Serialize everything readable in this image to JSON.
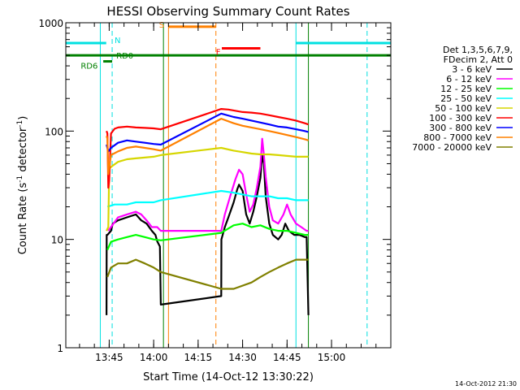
{
  "chart_data": {
    "type": "line",
    "title": "HESSI Observing Summary Count Rates",
    "xlabel": "Start Time (14-Oct-12 13:30:22)",
    "ylabel_main": "Count Rate (s",
    "ylabel_sup1": "-1",
    "ylabel_mid": " detector",
    "ylabel_sup2": "-1",
    "ylabel_end": ")",
    "yscale": "log",
    "ylim": [
      1,
      1000
    ],
    "xlim": [
      13.5061,
      15.3333
    ],
    "x_unit": "hours UT",
    "x_ticks": [
      {
        "v": 13.75,
        "label": "13:45"
      },
      {
        "v": 14.0,
        "label": "14:00"
      },
      {
        "v": 14.25,
        "label": "14:15"
      },
      {
        "v": 14.5,
        "label": "14:30"
      },
      {
        "v": 14.75,
        "label": "14:45"
      },
      {
        "v": 15.0,
        "label": "15:00"
      }
    ],
    "y_ticks": [
      {
        "v": 1,
        "label": "1"
      },
      {
        "v": 10,
        "label": "10"
      },
      {
        "v": 100,
        "label": "100"
      },
      {
        "v": 1000,
        "label": "1000"
      }
    ],
    "timestamp": "14-Oct-2012 21:30",
    "legend": {
      "header1": "Det 1,3,5,6,7,9,",
      "header2": "FDecim 2, Att 0",
      "entries": [
        {
          "label": "3 - 6 keV",
          "color": "#000000"
        },
        {
          "label": "6 - 12 keV",
          "color": "#ff00ff"
        },
        {
          "label": "12 - 25 keV",
          "color": "#00ff00"
        },
        {
          "label": "25 - 50 keV",
          "color": "#00ffff"
        },
        {
          "label": "50 - 100 keV",
          "color": "#d6d600"
        },
        {
          "label": "100 - 300 keV",
          "color": "#ff0000"
        },
        {
          "label": "300 - 800 keV",
          "color": "#0000ff"
        },
        {
          "label": "800 - 7000 keV",
          "color": "#ff8000"
        },
        {
          "label": "7000 - 20000 keV",
          "color": "#808000"
        }
      ]
    },
    "flags": [
      {
        "label": "N",
        "color": "#00e0e0",
        "y": 650,
        "segments": [
          [
            13.5061,
            13.7333
          ],
          [
            14.8,
            15.3333
          ]
        ]
      },
      {
        "label": "S",
        "color": "#ff8000",
        "y": 920,
        "segments": [
          [
            14.0833,
            14.35
          ]
        ]
      },
      {
        "label": "F",
        "color": "#ff0000",
        "y": 580,
        "segments": [
          [
            14.3833,
            14.6
          ]
        ]
      },
      {
        "label": "RD0",
        "color": "#008000",
        "y": 500,
        "segments": [
          [
            13.5061,
            15.3333
          ]
        ]
      },
      {
        "label": "RD6",
        "color": "#008000",
        "y": 440,
        "segments": [
          [
            13.7167,
            13.7667
          ]
        ]
      }
    ],
    "vlines": [
      {
        "x": 13.5,
        "color": "#00e0e0",
        "dash": false
      },
      {
        "x": 13.7,
        "color": "#00e0e0",
        "dash": false
      },
      {
        "x": 13.7667,
        "color": "#00e0e0",
        "dash": true
      },
      {
        "x": 14.055,
        "color": "#008000",
        "dash": false
      },
      {
        "x": 14.0833,
        "color": "#ff8000",
        "dash": false
      },
      {
        "x": 14.35,
        "color": "#ff8000",
        "dash": true
      },
      {
        "x": 14.8,
        "color": "#00e0e0",
        "dash": false
      },
      {
        "x": 14.87,
        "color": "#008000",
        "dash": false
      },
      {
        "x": 15.2,
        "color": "#00e0e0",
        "dash": true
      }
    ],
    "series": [
      {
        "name": "3 - 6 keV",
        "color": "#000000",
        "points": [
          [
            13.735,
            2.0
          ],
          [
            13.736,
            11
          ],
          [
            13.74,
            11
          ],
          [
            13.76,
            12
          ],
          [
            13.77,
            14
          ],
          [
            13.8,
            15
          ],
          [
            13.85,
            16
          ],
          [
            13.9,
            17
          ],
          [
            13.93,
            15
          ],
          [
            13.96,
            14
          ],
          [
            13.99,
            12
          ],
          [
            14.01,
            11
          ],
          [
            14.02,
            9.6
          ],
          [
            14.035,
            8.6
          ],
          [
            14.04,
            2.5
          ],
          [
            14.38,
            3.0
          ],
          [
            14.381,
            10
          ],
          [
            14.4,
            13
          ],
          [
            14.42,
            16
          ],
          [
            14.45,
            22
          ],
          [
            14.47,
            29
          ],
          [
            14.48,
            32
          ],
          [
            14.5,
            28
          ],
          [
            14.52,
            17
          ],
          [
            14.54,
            14
          ],
          [
            14.56,
            18
          ],
          [
            14.58,
            25
          ],
          [
            14.6,
            37
          ],
          [
            14.61,
            60
          ],
          [
            14.62,
            50
          ],
          [
            14.63,
            25
          ],
          [
            14.65,
            14
          ],
          [
            14.67,
            11
          ],
          [
            14.7,
            10
          ],
          [
            14.72,
            11
          ],
          [
            14.74,
            14
          ],
          [
            14.76,
            12
          ],
          [
            14.79,
            11
          ],
          [
            14.82,
            11
          ],
          [
            14.85,
            10.5
          ],
          [
            14.86,
            10.5
          ],
          [
            14.87,
            2.0
          ]
        ]
      },
      {
        "name": "6 - 12 keV",
        "color": "#ff00ff",
        "points": [
          [
            13.745,
            12
          ],
          [
            13.76,
            13
          ],
          [
            13.8,
            16
          ],
          [
            13.85,
            17
          ],
          [
            13.9,
            18
          ],
          [
            13.93,
            17
          ],
          [
            13.96,
            15
          ],
          [
            13.99,
            13
          ],
          [
            14.02,
            13
          ],
          [
            14.04,
            12
          ],
          [
            14.38,
            12
          ],
          [
            14.4,
            17
          ],
          [
            14.43,
            25
          ],
          [
            14.46,
            36
          ],
          [
            14.48,
            44
          ],
          [
            14.5,
            40
          ],
          [
            14.52,
            26
          ],
          [
            14.54,
            18
          ],
          [
            14.56,
            21
          ],
          [
            14.58,
            30
          ],
          [
            14.6,
            47
          ],
          [
            14.61,
            85
          ],
          [
            14.62,
            60
          ],
          [
            14.63,
            38
          ],
          [
            14.65,
            20
          ],
          [
            14.67,
            15
          ],
          [
            14.7,
            14
          ],
          [
            14.73,
            17
          ],
          [
            14.75,
            21
          ],
          [
            14.77,
            17
          ],
          [
            14.8,
            14
          ],
          [
            14.83,
            13
          ],
          [
            14.86,
            12
          ],
          [
            14.87,
            12
          ]
        ]
      },
      {
        "name": "12 - 25 keV",
        "color": "#00ff00",
        "points": [
          [
            13.74,
            8.0
          ],
          [
            13.76,
            9.5
          ],
          [
            13.8,
            10.0
          ],
          [
            13.85,
            10.5
          ],
          [
            13.9,
            11.0
          ],
          [
            13.95,
            10.5
          ],
          [
            14.0,
            10.0
          ],
          [
            14.04,
            9.8
          ],
          [
            14.38,
            11.5
          ],
          [
            14.45,
            13.5
          ],
          [
            14.5,
            14.0
          ],
          [
            14.55,
            13.0
          ],
          [
            14.6,
            13.5
          ],
          [
            14.65,
            12.5
          ],
          [
            14.7,
            12.0
          ],
          [
            14.75,
            12.0
          ],
          [
            14.8,
            11.5
          ],
          [
            14.85,
            11.0
          ],
          [
            14.87,
            11.0
          ]
        ]
      },
      {
        "name": "25 - 50 keV",
        "color": "#00ffff",
        "points": [
          [
            13.74,
            20
          ],
          [
            13.78,
            21
          ],
          [
            13.85,
            21
          ],
          [
            13.9,
            22
          ],
          [
            13.95,
            22
          ],
          [
            14.0,
            22
          ],
          [
            14.04,
            23
          ],
          [
            14.38,
            28
          ],
          [
            14.45,
            27
          ],
          [
            14.5,
            26
          ],
          [
            14.55,
            25
          ],
          [
            14.6,
            25
          ],
          [
            14.65,
            25
          ],
          [
            14.7,
            24
          ],
          [
            14.75,
            24
          ],
          [
            14.8,
            23
          ],
          [
            14.85,
            23
          ],
          [
            14.87,
            23
          ]
        ]
      },
      {
        "name": "50 - 100 keV",
        "color": "#d6d600",
        "points": [
          [
            13.735,
            12
          ],
          [
            13.745,
            13
          ],
          [
            13.75,
            45
          ],
          [
            13.77,
            48
          ],
          [
            13.8,
            52
          ],
          [
            13.85,
            55
          ],
          [
            13.9,
            56
          ],
          [
            13.95,
            57
          ],
          [
            14.0,
            58
          ],
          [
            14.04,
            60
          ],
          [
            14.38,
            70
          ],
          [
            14.45,
            66
          ],
          [
            14.5,
            64
          ],
          [
            14.55,
            62
          ],
          [
            14.6,
            61
          ],
          [
            14.65,
            61
          ],
          [
            14.7,
            60
          ],
          [
            14.75,
            59
          ],
          [
            14.8,
            58
          ],
          [
            14.85,
            58
          ],
          [
            14.87,
            58
          ]
        ]
      },
      {
        "name": "100 - 300 keV",
        "color": "#ff0000",
        "points": [
          [
            13.735,
            100
          ],
          [
            13.74,
            95
          ],
          [
            13.745,
            30
          ],
          [
            13.75,
            35
          ],
          [
            13.76,
            95
          ],
          [
            13.78,
            105
          ],
          [
            13.8,
            108
          ],
          [
            13.85,
            110
          ],
          [
            13.9,
            108
          ],
          [
            13.95,
            107
          ],
          [
            14.0,
            106
          ],
          [
            14.04,
            104
          ],
          [
            14.38,
            160
          ],
          [
            14.42,
            158
          ],
          [
            14.5,
            150
          ],
          [
            14.55,
            148
          ],
          [
            14.6,
            145
          ],
          [
            14.65,
            140
          ],
          [
            14.7,
            135
          ],
          [
            14.75,
            130
          ],
          [
            14.8,
            125
          ],
          [
            14.85,
            118
          ],
          [
            14.87,
            115
          ]
        ]
      },
      {
        "name": "300 - 800 keV",
        "color": "#0000ff",
        "points": [
          [
            13.735,
            75
          ],
          [
            13.745,
            65
          ],
          [
            13.76,
            70
          ],
          [
            13.8,
            78
          ],
          [
            13.85,
            82
          ],
          [
            13.9,
            80
          ],
          [
            13.95,
            78
          ],
          [
            14.0,
            76
          ],
          [
            14.04,
            75
          ],
          [
            14.38,
            145
          ],
          [
            14.45,
            135
          ],
          [
            14.5,
            130
          ],
          [
            14.55,
            125
          ],
          [
            14.6,
            120
          ],
          [
            14.65,
            115
          ],
          [
            14.7,
            110
          ],
          [
            14.75,
            108
          ],
          [
            14.8,
            104
          ],
          [
            14.85,
            100
          ],
          [
            14.87,
            98
          ]
        ]
      },
      {
        "name": "800 - 7000 keV",
        "color": "#ff8000",
        "points": [
          [
            13.735,
            90
          ],
          [
            13.74,
            85
          ],
          [
            13.745,
            40
          ],
          [
            13.76,
            60
          ],
          [
            13.8,
            65
          ],
          [
            13.85,
            70
          ],
          [
            13.9,
            72
          ],
          [
            13.95,
            70
          ],
          [
            14.0,
            68
          ],
          [
            14.04,
            66
          ],
          [
            14.38,
            130
          ],
          [
            14.45,
            118
          ],
          [
            14.5,
            112
          ],
          [
            14.55,
            108
          ],
          [
            14.6,
            104
          ],
          [
            14.65,
            100
          ],
          [
            14.7,
            96
          ],
          [
            14.75,
            92
          ],
          [
            14.8,
            88
          ],
          [
            14.85,
            84
          ],
          [
            14.87,
            82
          ]
        ]
      },
      {
        "name": "7000 - 20000 keV",
        "color": "#808000",
        "points": [
          [
            13.74,
            4.5
          ],
          [
            13.76,
            5.5
          ],
          [
            13.8,
            6.0
          ],
          [
            13.85,
            6.0
          ],
          [
            13.9,
            6.5
          ],
          [
            13.95,
            6.0
          ],
          [
            14.0,
            5.5
          ],
          [
            14.04,
            5.0
          ],
          [
            14.38,
            3.5
          ],
          [
            14.45,
            3.5
          ],
          [
            14.55,
            4.0
          ],
          [
            14.6,
            4.5
          ],
          [
            14.65,
            5.0
          ],
          [
            14.7,
            5.5
          ],
          [
            14.75,
            6.0
          ],
          [
            14.8,
            6.5
          ],
          [
            14.85,
            6.5
          ],
          [
            14.87,
            6.5
          ]
        ]
      }
    ]
  }
}
